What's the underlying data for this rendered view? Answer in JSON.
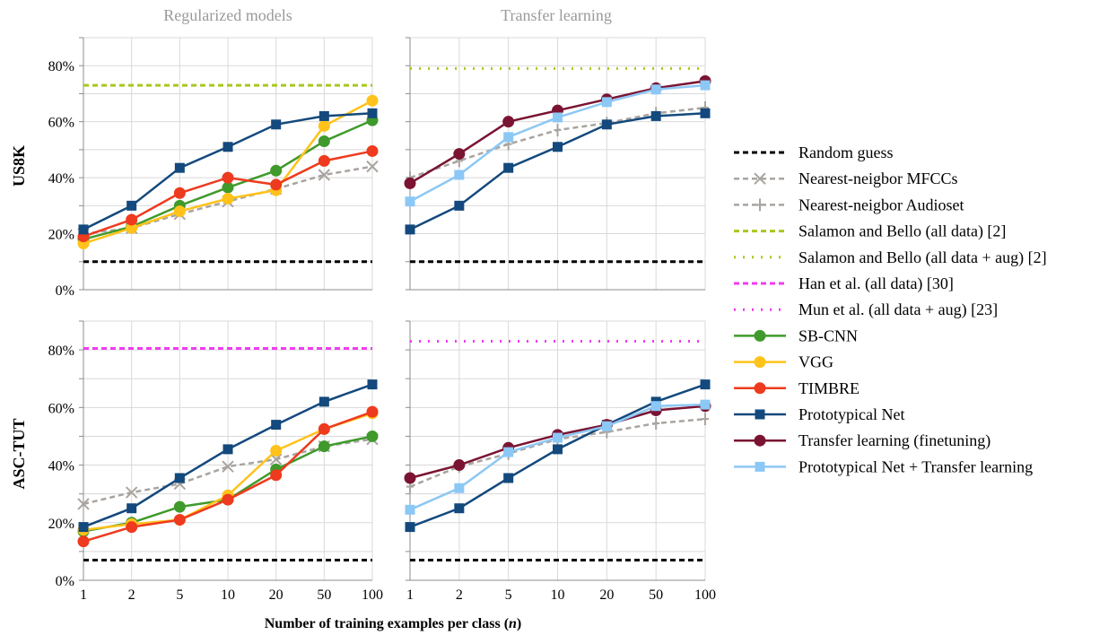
{
  "figure": {
    "column_titles": [
      "Regularized models",
      "Transfer learning"
    ],
    "row_labels": [
      "US8K",
      "ASC-TUT"
    ],
    "xlabel_prefix": "Number of training examples per class (",
    "xlabel_var": "n",
    "xlabel_suffix": ")"
  },
  "legend": [
    {
      "key": "random",
      "label": "Random guess",
      "color": "#000000",
      "dash": "6,4",
      "marker": "none"
    },
    {
      "key": "nn_mfcc",
      "label": "Nearest-neigbor MFCCs",
      "color": "#a9a4a0",
      "dash": "6,4",
      "marker": "x"
    },
    {
      "key": "nn_audioset",
      "label": "Nearest-neigbor Audioset",
      "color": "#a9a4a0",
      "dash": "6,4",
      "marker": "plus"
    },
    {
      "key": "salamon",
      "label": "Salamon and Bello (all data) [2]",
      "color": "#a8c81e",
      "dash": "6,4",
      "marker": "none"
    },
    {
      "key": "salamon_aug",
      "label": "Salamon and Bello (all data + aug) [2]",
      "color": "#a8c81e",
      "dash": "2,8",
      "marker": "none"
    },
    {
      "key": "han",
      "label": "Han et al. (all data) [30]",
      "color": "#f03cf0",
      "dash": "6,4",
      "marker": "none"
    },
    {
      "key": "mun",
      "label": "Mun et al. (all data + aug) [23]",
      "color": "#f03cf0",
      "dash": "2,8",
      "marker": "none"
    },
    {
      "key": "sbcnn",
      "label": "SB-CNN",
      "color": "#3f9a2b",
      "dash": "",
      "marker": "circle"
    },
    {
      "key": "vgg",
      "label": "VGG",
      "color": "#ffc21a",
      "dash": "",
      "marker": "circle"
    },
    {
      "key": "timbre",
      "label": "TIMBRE",
      "color": "#ee3a1e",
      "dash": "",
      "marker": "circle"
    },
    {
      "key": "proto",
      "label": "Prototypical Net",
      "color": "#13497d",
      "dash": "",
      "marker": "square"
    },
    {
      "key": "transfer",
      "label": "Transfer learning (finetuning)",
      "color": "#7a1432",
      "dash": "",
      "marker": "circle"
    },
    {
      "key": "proto_transfer",
      "label": "Prototypical Net + Transfer learning",
      "color": "#8cc8f5",
      "dash": "",
      "marker": "square"
    }
  ],
  "chart_data": [
    {
      "type": "line",
      "dataset": "US8K",
      "panel": "Regularized models",
      "x": [
        "1",
        "2",
        "5",
        "10",
        "20",
        "50",
        "100"
      ],
      "ylim": [
        0,
        90
      ],
      "yticks": [
        "0%",
        "20%",
        "40%",
        "60%",
        "80%"
      ],
      "grid": true,
      "series": [
        {
          "name": "Random guess",
          "key": "random",
          "values": [
            10,
            10,
            10,
            10,
            10,
            10,
            10
          ]
        },
        {
          "name": "Salamon and Bello (all data) [2]",
          "key": "salamon",
          "values": [
            73,
            73,
            73,
            73,
            73,
            73,
            73
          ]
        },
        {
          "name": "Nearest-neigbor MFCCs",
          "key": "nn_mfcc",
          "values": [
            20,
            22,
            27,
            31.5,
            36,
            41,
            44
          ]
        },
        {
          "name": "SB-CNN",
          "key": "sbcnn",
          "values": [
            18,
            22.5,
            30,
            36.5,
            42.5,
            53,
            60.5
          ]
        },
        {
          "name": "VGG",
          "key": "vgg",
          "values": [
            16.5,
            22,
            28,
            32.5,
            35.5,
            58.5,
            67.5
          ]
        },
        {
          "name": "TIMBRE",
          "key": "timbre",
          "values": [
            19,
            25,
            34.5,
            40,
            37.5,
            46,
            49.5
          ]
        },
        {
          "name": "Prototypical Net",
          "key": "proto",
          "values": [
            21.5,
            30,
            43.5,
            51,
            59,
            62,
            63
          ]
        }
      ]
    },
    {
      "type": "line",
      "dataset": "US8K",
      "panel": "Transfer learning",
      "x": [
        "1",
        "2",
        "5",
        "10",
        "20",
        "50",
        "100"
      ],
      "ylim": [
        0,
        90
      ],
      "yticks": [
        "0%",
        "20%",
        "40%",
        "60%",
        "80%"
      ],
      "grid": true,
      "series": [
        {
          "name": "Random guess",
          "key": "random",
          "values": [
            10,
            10,
            10,
            10,
            10,
            10,
            10
          ]
        },
        {
          "name": "Salamon and Bello (all data + aug) [2]",
          "key": "salamon_aug",
          "values": [
            79,
            79,
            79,
            79,
            79,
            79,
            79
          ]
        },
        {
          "name": "Nearest-neigbor Audioset",
          "key": "nn_audioset",
          "values": [
            40,
            46,
            52,
            57,
            59.5,
            63,
            65
          ]
        },
        {
          "name": "Prototypical Net",
          "key": "proto",
          "values": [
            21.5,
            30,
            43.5,
            51,
            59,
            62,
            63
          ]
        },
        {
          "name": "Transfer learning (finetuning)",
          "key": "transfer",
          "values": [
            38,
            48.5,
            60,
            64,
            68,
            72,
            74.5
          ]
        },
        {
          "name": "Prototypical Net + Transfer learning",
          "key": "proto_transfer",
          "values": [
            31.5,
            41,
            54.5,
            61.5,
            67,
            71.5,
            73
          ]
        }
      ]
    },
    {
      "type": "line",
      "dataset": "ASC-TUT",
      "panel": "Regularized models",
      "x": [
        "1",
        "2",
        "5",
        "10",
        "20",
        "50",
        "100"
      ],
      "ylim": [
        0,
        90
      ],
      "yticks": [
        "0%",
        "20%",
        "40%",
        "60%",
        "80%"
      ],
      "grid": true,
      "series": [
        {
          "name": "Random guess",
          "key": "random",
          "values": [
            7,
            7,
            7,
            7,
            7,
            7,
            7
          ]
        },
        {
          "name": "Han et al. (all data) [30]",
          "key": "han",
          "values": [
            80.5,
            80.5,
            80.5,
            80.5,
            80.5,
            80.5,
            80.5
          ]
        },
        {
          "name": "Nearest-neigbor MFCCs",
          "key": "nn_mfcc",
          "values": [
            26.5,
            30.5,
            33.5,
            39.5,
            42,
            46.5,
            49
          ]
        },
        {
          "name": "SB-CNN",
          "key": "sbcnn",
          "values": [
            17,
            20,
            25.5,
            28,
            38.5,
            46.5,
            50
          ]
        },
        {
          "name": "VGG",
          "key": "vgg",
          "values": [
            17.5,
            19.5,
            21,
            29.5,
            45,
            52.5,
            58
          ]
        },
        {
          "name": "TIMBRE",
          "key": "timbre",
          "values": [
            13.5,
            18.5,
            21,
            28,
            36.5,
            52.5,
            58.5
          ]
        },
        {
          "name": "Prototypical Net",
          "key": "proto",
          "values": [
            18.5,
            25,
            35.5,
            45.5,
            54,
            62,
            68
          ]
        }
      ]
    },
    {
      "type": "line",
      "dataset": "ASC-TUT",
      "panel": "Transfer learning",
      "x": [
        "1",
        "2",
        "5",
        "10",
        "20",
        "50",
        "100"
      ],
      "ylim": [
        0,
        90
      ],
      "yticks": [
        "0%",
        "20%",
        "40%",
        "60%",
        "80%"
      ],
      "grid": true,
      "series": [
        {
          "name": "Random guess",
          "key": "random",
          "values": [
            7,
            7,
            7,
            7,
            7,
            7,
            7
          ]
        },
        {
          "name": "Mun et al. (all data + aug) [23]",
          "key": "mun",
          "values": [
            83,
            83,
            83,
            83,
            83,
            83,
            83
          ]
        },
        {
          "name": "Nearest-neigbor Audioset",
          "key": "nn_audioset",
          "values": [
            32.5,
            39.5,
            44,
            49,
            51.5,
            54.5,
            56
          ]
        },
        {
          "name": "Prototypical Net",
          "key": "proto",
          "values": [
            18.5,
            25,
            35.5,
            45.5,
            54,
            62,
            68
          ]
        },
        {
          "name": "Transfer learning (finetuning)",
          "key": "transfer",
          "values": [
            35.5,
            40,
            46,
            50.5,
            54,
            59,
            60.5
          ]
        },
        {
          "name": "Prototypical Net + Transfer learning",
          "key": "proto_transfer",
          "values": [
            24.5,
            32,
            44.5,
            49.5,
            53.5,
            60.5,
            61
          ]
        }
      ]
    }
  ]
}
